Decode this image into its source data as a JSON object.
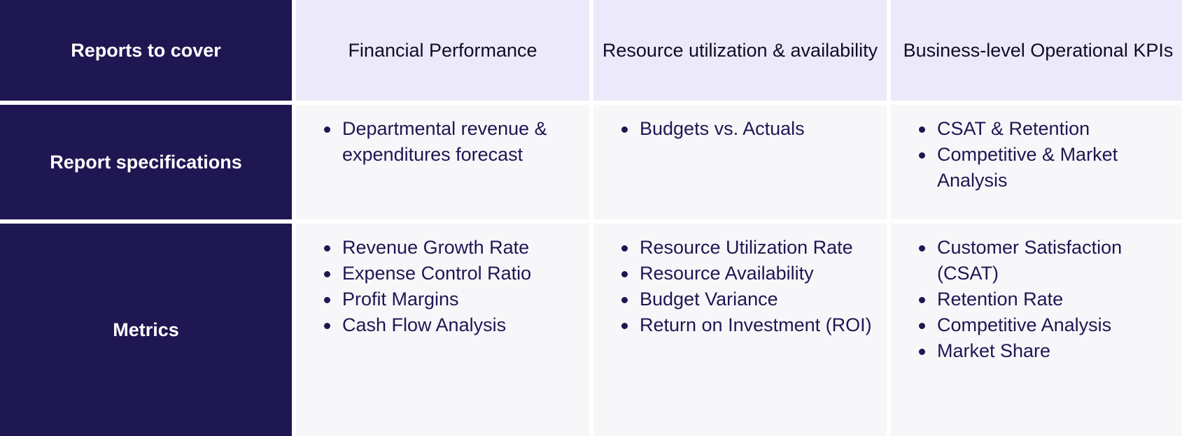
{
  "table": {
    "row_headers": [
      "Reports to cover",
      "Report specifications",
      "Metrics"
    ],
    "columns": [
      {
        "title": "Financial Performance",
        "specifications": [
          "Departmental revenue & expenditures forecast"
        ],
        "metrics": [
          "Revenue Growth Rate",
          "Expense Control Ratio",
          "Profit Margins",
          "Cash Flow Analysis"
        ]
      },
      {
        "title": "Resource utilization & availability",
        "specifications": [
          "Budgets vs. Actuals"
        ],
        "metrics": [
          "Resource Utilization Rate",
          "Resource Availability",
          "Budget Variance",
          "Return on Investment (ROI)"
        ]
      },
      {
        "title": "Business-level Operational KPIs",
        "specifications": [
          "CSAT & Retention",
          "Competitive & Market Analysis"
        ],
        "metrics": [
          "Customer Satisfaction (CSAT)",
          "Retention Rate",
          "Competitive Analysis",
          "Market Share"
        ]
      }
    ]
  },
  "colors": {
    "row_header_bg": "#1f1752",
    "column_header_bg": "#ece9fa",
    "cell_bg": "#f7f7fa",
    "text": "#1f1752"
  }
}
